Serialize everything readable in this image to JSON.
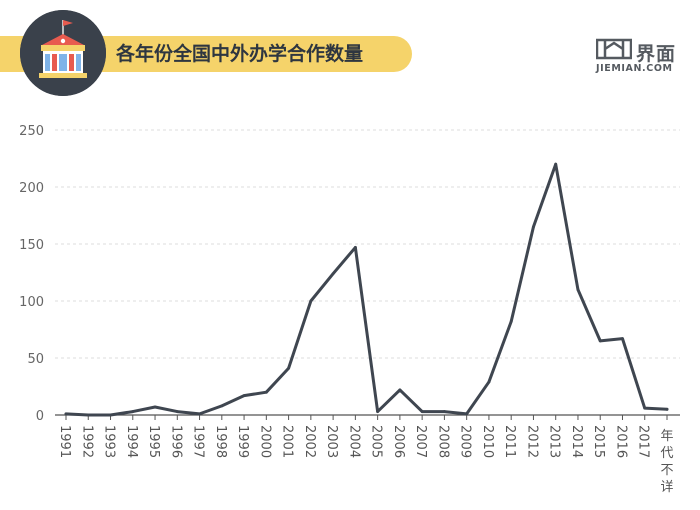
{
  "header": {
    "title": "各年份全国中外办学合作数量",
    "accent_color": "#f5d36a",
    "badge_color": "#3a414b"
  },
  "logo": {
    "cn": "界面",
    "en": "JIEMIAN.COM",
    "color": "#555a60"
  },
  "chart_data": {
    "type": "line",
    "title": "各年份全国中外办学合作数量",
    "xlabel": "",
    "ylabel": "",
    "categories": [
      "1991",
      "1992",
      "1993",
      "1994",
      "1995",
      "1996",
      "1997",
      "1998",
      "1999",
      "2000",
      "2001",
      "2002",
      "2003",
      "2004",
      "2005",
      "2006",
      "2007",
      "2008",
      "2009",
      "2010",
      "2011",
      "2012",
      "2013",
      "2014",
      "2015",
      "2016",
      "2017",
      "年代不详"
    ],
    "series": [
      {
        "values": [
          1,
          0,
          0,
          3,
          7,
          3,
          1,
          8,
          17,
          20,
          41,
          100,
          124,
          147,
          3,
          22,
          3,
          3,
          1,
          29,
          82,
          165,
          220,
          110,
          65,
          67,
          6,
          5
        ],
        "color": "#3f4650"
      }
    ],
    "ylim": [
      0,
      250
    ],
    "yticks": [
      0,
      50,
      100,
      150,
      200,
      250
    ],
    "grid": true
  }
}
